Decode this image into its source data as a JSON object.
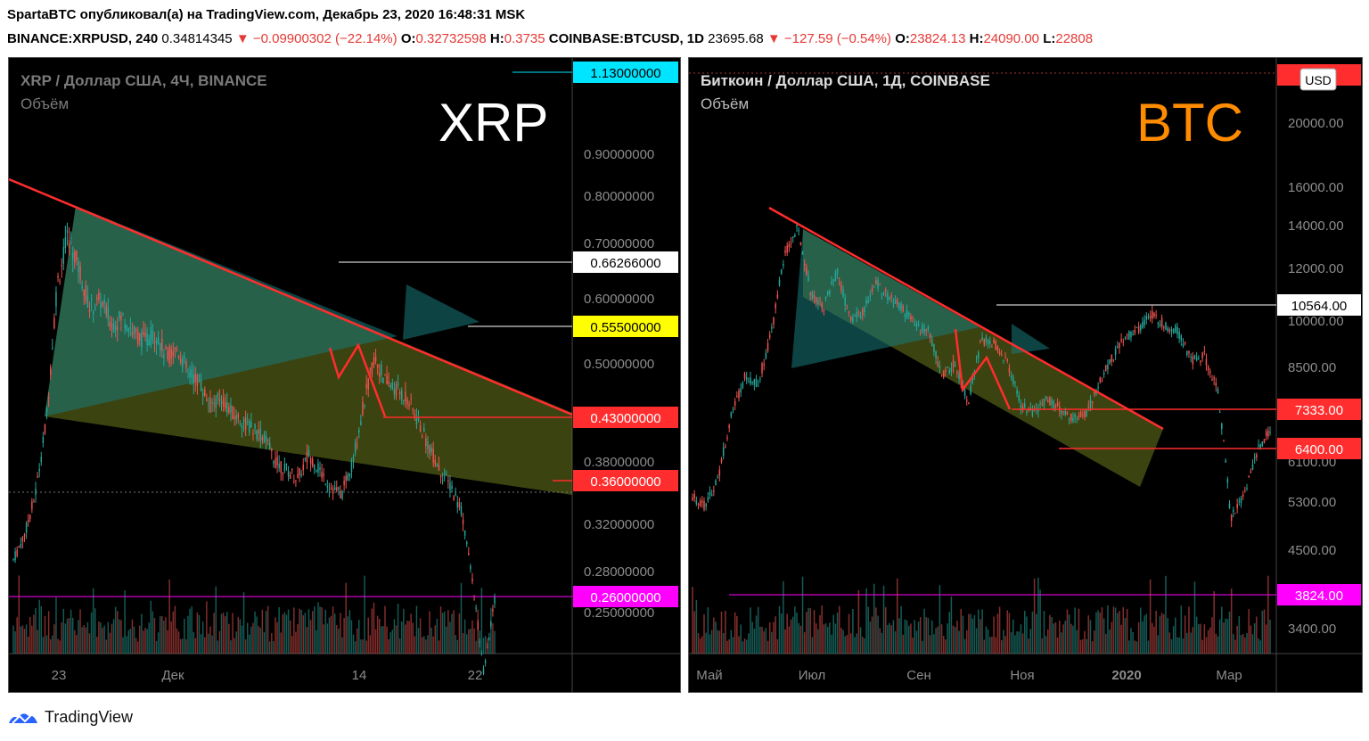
{
  "header": {
    "line1": "SpartaBTC опубликовал(а) на TradingView.com, Декабрь 23, 2020 16:48:31 MSK",
    "xrp": {
      "symbol": "BINANCE:XRPUSD, 240",
      "price": "0.34814345",
      "change": "▼ −0.09900302 (−22.14%)",
      "o_label": "O:",
      "o_val": "0.32732598",
      "h_label": "H:",
      "h_val": "0.3735"
    },
    "btc": {
      "symbol": "COINBASE:BTCUSD, 1D",
      "price": "23695.68",
      "change": "▼ −127.59 (−0.54%)",
      "o_label": "O:",
      "o_val": "23824.13",
      "h_label": "H:",
      "h_val": "24090.00",
      "l_label": "L:",
      "l_val": "22808"
    }
  },
  "footer": {
    "brand": "TradingView"
  },
  "colors": {
    "background": "#000000",
    "grid_text": "#8c8c8c",
    "trend_red": "#ff2d2d",
    "channel_fill": "#6b7a1e",
    "triangle_fill": "#1a7a7a",
    "level_magenta": "#ff00ff",
    "cyan_label": "#00e5ff",
    "yellow_label": "#ffff00",
    "btc_orange": "#ff8c00"
  },
  "chart_data": [
    {
      "type": "candlestick",
      "title": "XRP / Доллар США, 4Ч, BINANCE",
      "subtitle": "Объём",
      "big_label": "XRP",
      "x_ticks": [
        "23",
        "Дек",
        "14",
        "22"
      ],
      "y_ticks": [
        "0.90000000",
        "0.80000000",
        "0.70000000",
        "0.60000000",
        "0.50000000",
        "0.38000000",
        "0.32000000",
        "0.28000000",
        "0.25000000"
      ],
      "ylim": [
        0.24,
        1.13
      ],
      "price_labels": [
        {
          "value": "1.13000000",
          "color": "#00e5ff",
          "text_color": "#000000"
        },
        {
          "value": "0.66266000",
          "color": "#ffffff",
          "text_color": "#000000"
        },
        {
          "value": "0.55500000",
          "color": "#ffff00",
          "text_color": "#000000"
        },
        {
          "value": "0.43000000",
          "color": "#ff2d2d",
          "text_color": "#ffffff"
        },
        {
          "value": "0.36000000",
          "color": "#ff2d2d",
          "text_color": "#ffffff"
        },
        {
          "value": "0.26000000",
          "color": "#ff00ff",
          "text_color": "#ffffff"
        }
      ],
      "price_path": [
        0.38,
        0.41,
        0.46,
        0.55,
        0.72,
        0.78,
        0.74,
        0.69,
        0.7,
        0.67,
        0.68,
        0.66,
        0.65,
        0.66,
        0.63,
        0.64,
        0.61,
        0.6,
        0.57,
        0.58,
        0.56,
        0.55,
        0.54,
        0.53,
        0.5,
        0.49,
        0.48,
        0.51,
        0.49,
        0.47,
        0.46,
        0.5,
        0.57,
        0.63,
        0.6,
        0.59,
        0.58,
        0.55,
        0.52,
        0.49,
        0.47,
        0.44,
        0.35,
        0.24,
        0.33
      ]
    },
    {
      "type": "candlestick",
      "title": "Биткоин / Доллар США, 1Д, COINBASE",
      "subtitle": "Объём",
      "big_label": "BTC",
      "currency": "USD",
      "x_ticks": [
        "Май",
        "Июл",
        "Сен",
        "Ноя",
        "2020",
        "Мар"
      ],
      "y_ticks": [
        "20000.00",
        "16000.00",
        "14000.00",
        "12000.00",
        "10000.00",
        "8500.00",
        "6100.00",
        "5300.00",
        "4500.00",
        "3400.00"
      ],
      "y_scale": "log",
      "price_labels": [
        {
          "value": "10564.00",
          "color": "#ffffff",
          "text_color": "#000000"
        },
        {
          "value": "7333.00",
          "color": "#ff2d2d",
          "text_color": "#ffffff"
        },
        {
          "value": "6400.00",
          "color": "#ff2d2d",
          "text_color": "#ffffff"
        },
        {
          "value": "3824.00",
          "color": "#ff00ff",
          "text_color": "#ffffff"
        }
      ],
      "price_path": [
        5400,
        5200,
        5800,
        7200,
        8200,
        8000,
        9500,
        12500,
        13800,
        11000,
        10500,
        11800,
        10000,
        10300,
        11400,
        10800,
        10400,
        9800,
        9600,
        8200,
        8600,
        7500,
        9300,
        9200,
        8600,
        7400,
        7200,
        7600,
        7300,
        7100,
        7200,
        8000,
        8800,
        9400,
        9700,
        10200,
        9800,
        9600,
        8700,
        8800,
        7800,
        5000,
        5400,
        6300,
        6800
      ]
    }
  ]
}
